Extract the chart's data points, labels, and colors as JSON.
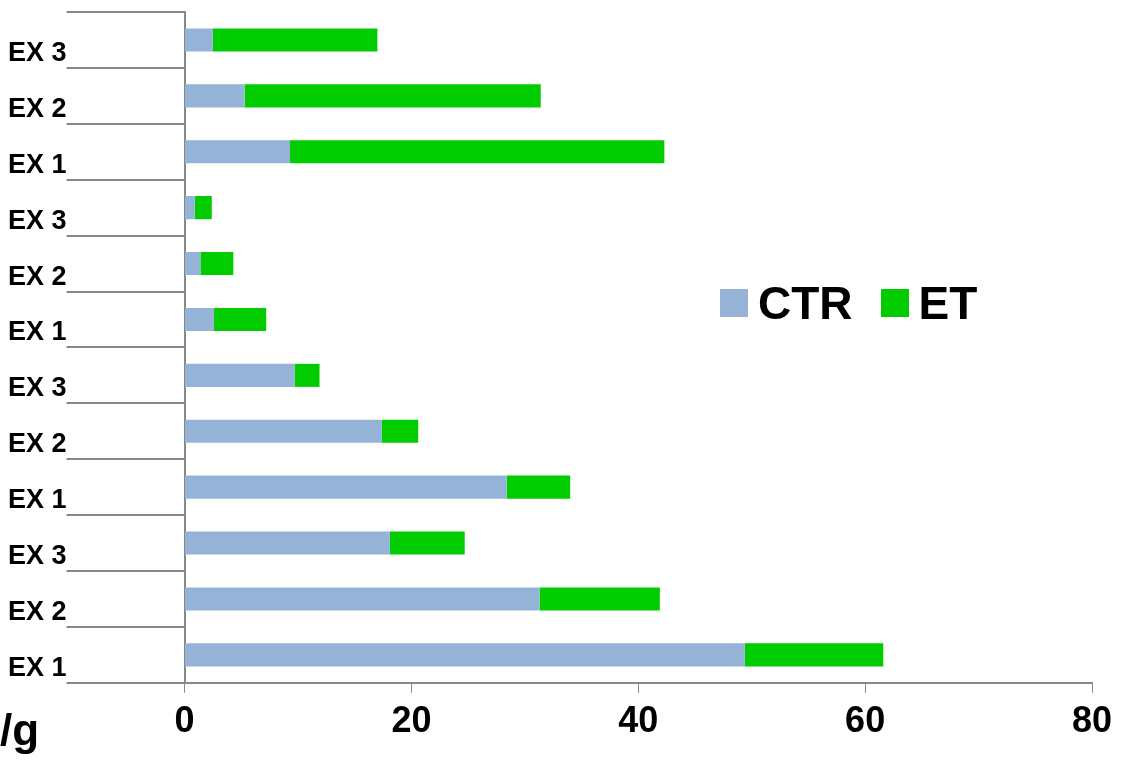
{
  "chart_data": {
    "type": "bar",
    "orientation": "horizontal",
    "stacked": true,
    "xlabel": "/g",
    "categories": [
      "EX 3",
      "EX 2",
      "EX 1",
      "EX 3",
      "EX 2",
      "EX 1",
      "EX 3",
      "EX 2",
      "EX 1",
      "EX 3",
      "EX 2",
      "EX 1"
    ],
    "series": [
      {
        "name": "CTR",
        "color": "#95b3d7",
        "values": [
          2.5,
          5.3,
          9.3,
          0.9,
          1.4,
          2.6,
          9.7,
          17.4,
          28.4,
          18.1,
          31.3,
          49.4
        ]
      },
      {
        "name": "ET",
        "color": "#00cc00",
        "values": [
          14.5,
          26.1,
          33.0,
          1.5,
          2.9,
          4.6,
          2.2,
          3.2,
          5.6,
          6.6,
          10.6,
          12.2
        ]
      }
    ],
    "xlim": [
      0,
      80
    ],
    "xticks": [
      0,
      20,
      40,
      60,
      80
    ],
    "grid": false,
    "legend": "right"
  }
}
